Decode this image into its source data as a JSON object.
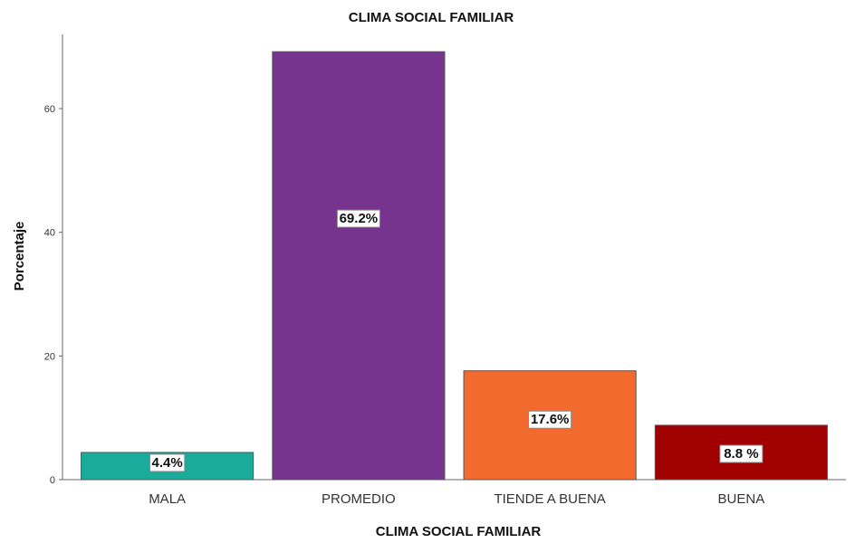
{
  "chart_data": {
    "type": "bar",
    "title": "CLIMA SOCIAL FAMILIAR",
    "xlabel": "CLIMA SOCIAL FAMILIAR",
    "ylabel": "Porcentaje",
    "categories": [
      "MALA",
      "PROMEDIO",
      "TIENDE A BUENA",
      "BUENA"
    ],
    "values": [
      4.4,
      69.2,
      17.6,
      8.8
    ],
    "data_labels": [
      "4.4%",
      "69.2%",
      "17.6%",
      "8.8 %"
    ],
    "colors": [
      "#1aab9b",
      "#76348e",
      "#f36a2e",
      "#a00000"
    ],
    "ylim": [
      0,
      72
    ],
    "yticks": [
      0,
      20,
      40,
      60
    ],
    "grid": false
  }
}
